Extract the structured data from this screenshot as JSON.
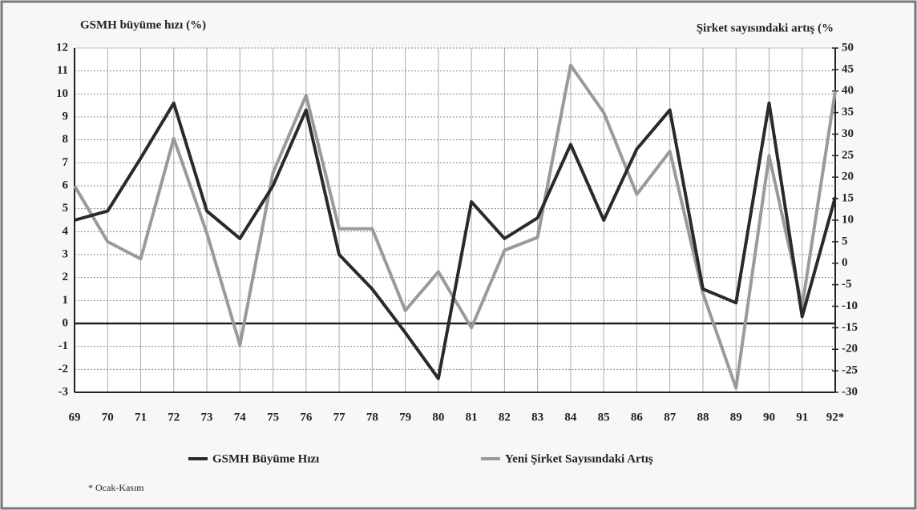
{
  "chart_data": {
    "type": "line",
    "title_left": "GSMH büyüme hızı (%)",
    "title_right": "Şirket sayısındaki artış (%",
    "footnote": "* Ocak-Kasım",
    "categories": [
      "69",
      "70",
      "71",
      "72",
      "73",
      "74",
      "75",
      "76",
      "77",
      "78",
      "79",
      "80",
      "81",
      "82",
      "83",
      "84",
      "85",
      "86",
      "87",
      "88",
      "89",
      "90",
      "91",
      "92*"
    ],
    "series": [
      {
        "name": "GSMH Büyüme Hızı",
        "color": "#2a2a2a",
        "axis": "y",
        "values": [
          4.5,
          4.9,
          7.2,
          9.6,
          4.9,
          3.7,
          6.0,
          9.3,
          3.0,
          1.5,
          -0.4,
          -2.4,
          5.3,
          3.7,
          4.6,
          7.8,
          4.5,
          7.6,
          9.3,
          1.5,
          0.9,
          9.6,
          0.3,
          5.5
        ]
      },
      {
        "name": "Yeni Şirket Sayısındaki Artış",
        "color": "#9a9a9a",
        "axis": "y2",
        "values": [
          18,
          5,
          1,
          29,
          7,
          -19,
          21,
          39,
          8,
          8,
          -11,
          -2,
          -15,
          3,
          6,
          46,
          35,
          16,
          26,
          -7,
          -29,
          25,
          -10,
          40
        ]
      }
    ],
    "ylim": [
      -3,
      12
    ],
    "yticks": [
      -3,
      -2,
      -1,
      0,
      1,
      2,
      3,
      4,
      5,
      6,
      7,
      8,
      9,
      10,
      11,
      12
    ],
    "y2lim": [
      -30,
      50
    ],
    "y2ticks": [
      -30,
      -25,
      -20,
      -15,
      -10,
      -5,
      0,
      5,
      10,
      15,
      20,
      25,
      30,
      35,
      40,
      45,
      50
    ],
    "grid": true
  }
}
